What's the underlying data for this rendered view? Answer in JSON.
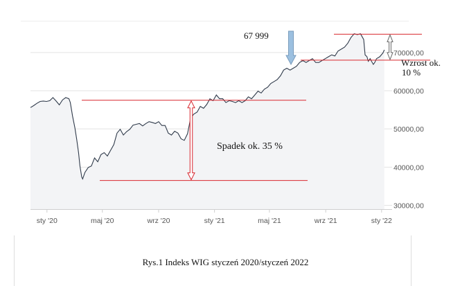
{
  "chart_data": {
    "type": "line",
    "title": "",
    "xlabel": "",
    "ylabel": "",
    "x_ticks": [
      "sty '20",
      "maj '20",
      "wrz '20",
      "sty '21",
      "maj '21",
      "wrz '21",
      "sty '22"
    ],
    "y_ticks": [
      "30000,00",
      "40000,00",
      "50000,00",
      "60000,00",
      "70000,00"
    ],
    "ylim": [
      29000,
      76500
    ],
    "x_range": [
      "2019-11-26",
      "2022-01-24"
    ],
    "grid": true,
    "series": [
      {
        "points": [
          [
            "2019-11-26",
            55600
          ],
          [
            "2019-12-03",
            56100
          ],
          [
            "2019-12-10",
            56700
          ],
          [
            "2019-12-17",
            57200
          ],
          [
            "2019-12-24",
            57300
          ],
          [
            "2019-12-31",
            57200
          ],
          [
            "2020-01-07",
            57400
          ],
          [
            "2020-01-14",
            58200
          ],
          [
            "2020-01-21",
            57300
          ],
          [
            "2020-01-28",
            56300
          ],
          [
            "2020-02-04",
            57600
          ],
          [
            "2020-02-11",
            58200
          ],
          [
            "2020-02-18",
            57900
          ],
          [
            "2020-02-21",
            56900
          ],
          [
            "2020-02-26",
            53300
          ],
          [
            "2020-03-02",
            50300
          ],
          [
            "2020-03-06",
            47300
          ],
          [
            "2020-03-10",
            43800
          ],
          [
            "2020-03-13",
            40300
          ],
          [
            "2020-03-17",
            37400
          ],
          [
            "2020-03-19",
            36900
          ],
          [
            "2020-03-24",
            38600
          ],
          [
            "2020-03-31",
            39900
          ],
          [
            "2020-04-07",
            40300
          ],
          [
            "2020-04-14",
            42400
          ],
          [
            "2020-04-21",
            41400
          ],
          [
            "2020-04-28",
            43300
          ],
          [
            "2020-05-05",
            43800
          ],
          [
            "2020-05-12",
            42900
          ],
          [
            "2020-05-19",
            44400
          ],
          [
            "2020-05-26",
            45900
          ],
          [
            "2020-06-02",
            48900
          ],
          [
            "2020-06-09",
            49900
          ],
          [
            "2020-06-16",
            48400
          ],
          [
            "2020-06-23",
            49300
          ],
          [
            "2020-06-30",
            49900
          ],
          [
            "2020-07-07",
            51000
          ],
          [
            "2020-07-14",
            51200
          ],
          [
            "2020-07-21",
            51400
          ],
          [
            "2020-07-28",
            50800
          ],
          [
            "2020-08-04",
            51400
          ],
          [
            "2020-08-11",
            51900
          ],
          [
            "2020-08-18",
            51700
          ],
          [
            "2020-08-25",
            51400
          ],
          [
            "2020-09-01",
            51900
          ],
          [
            "2020-09-08",
            50900
          ],
          [
            "2020-09-15",
            50900
          ],
          [
            "2020-09-22",
            48900
          ],
          [
            "2020-09-29",
            48400
          ],
          [
            "2020-10-06",
            49400
          ],
          [
            "2020-10-13",
            48900
          ],
          [
            "2020-10-20",
            47400
          ],
          [
            "2020-10-27",
            47000
          ],
          [
            "2020-11-03",
            48700
          ],
          [
            "2020-11-10",
            52900
          ],
          [
            "2020-11-17",
            53900
          ],
          [
            "2020-11-24",
            54400
          ],
          [
            "2020-12-01",
            55900
          ],
          [
            "2020-12-08",
            55400
          ],
          [
            "2020-12-15",
            56400
          ],
          [
            "2020-12-22",
            57900
          ],
          [
            "2020-12-29",
            57400
          ],
          [
            "2021-01-05",
            58900
          ],
          [
            "2021-01-12",
            57900
          ],
          [
            "2021-01-19",
            57900
          ],
          [
            "2021-01-26",
            56900
          ],
          [
            "2021-02-02",
            57400
          ],
          [
            "2021-02-09",
            57200
          ],
          [
            "2021-02-16",
            56900
          ],
          [
            "2021-02-23",
            57400
          ],
          [
            "2021-03-02",
            56900
          ],
          [
            "2021-03-09",
            57400
          ],
          [
            "2021-03-16",
            58400
          ],
          [
            "2021-03-23",
            57900
          ],
          [
            "2021-03-30",
            58900
          ],
          [
            "2021-04-06",
            59900
          ],
          [
            "2021-04-13",
            59400
          ],
          [
            "2021-04-20",
            60400
          ],
          [
            "2021-04-27",
            60900
          ],
          [
            "2021-05-04",
            61900
          ],
          [
            "2021-05-11",
            62400
          ],
          [
            "2021-05-18",
            62900
          ],
          [
            "2021-05-25",
            63900
          ],
          [
            "2021-06-01",
            65400
          ],
          [
            "2021-06-08",
            65900
          ],
          [
            "2021-06-15",
            65400
          ],
          [
            "2021-06-22",
            65900
          ],
          [
            "2021-06-29",
            66400
          ],
          [
            "2021-07-06",
            67400
          ],
          [
            "2021-07-13",
            67900
          ],
          [
            "2021-07-20",
            67400
          ],
          [
            "2021-07-27",
            67900
          ],
          [
            "2021-08-03",
            68400
          ],
          [
            "2021-08-10",
            67400
          ],
          [
            "2021-08-17",
            67400
          ],
          [
            "2021-08-24",
            67900
          ],
          [
            "2021-08-31",
            68400
          ],
          [
            "2021-09-07",
            68900
          ],
          [
            "2021-09-14",
            69400
          ],
          [
            "2021-09-21",
            69100
          ],
          [
            "2021-09-28",
            70400
          ],
          [
            "2021-10-05",
            70900
          ],
          [
            "2021-10-12",
            71400
          ],
          [
            "2021-10-19",
            72400
          ],
          [
            "2021-10-26",
            73900
          ],
          [
            "2021-11-02",
            74900
          ],
          [
            "2021-11-09",
            74700
          ],
          [
            "2021-11-16",
            74900
          ],
          [
            "2021-11-23",
            73400
          ],
          [
            "2021-11-26",
            69400
          ],
          [
            "2021-11-30",
            68900
          ],
          [
            "2021-12-03",
            67700
          ],
          [
            "2021-12-07",
            68400
          ],
          [
            "2021-12-10",
            67700
          ],
          [
            "2021-12-14",
            66900
          ],
          [
            "2021-12-17",
            67400
          ],
          [
            "2021-12-21",
            68400
          ],
          [
            "2021-12-28",
            68900
          ],
          [
            "2022-01-04",
            69900
          ],
          [
            "2022-01-07",
            70700
          ]
        ]
      }
    ],
    "annotations": {
      "peak_label": "67 999",
      "drop_label": "Spadek ok. 35 %",
      "rise_label_1": "Wzrost ok.",
      "rise_label_2": "10 %",
      "drop_top": 57500,
      "drop_bottom": 36500,
      "rise_top": 74800,
      "rise_bottom": 68000
    }
  },
  "caption": "Rys.1 Indeks WIG styczeń 2020/styczeń 2022",
  "colors": {
    "line": "#2f3a4a",
    "area": "#f3f4f6",
    "grid": "#e3e3e3",
    "annotation": "#d9272e",
    "arrow_fill": "#9cc0e0",
    "arrow_stroke": "#7a9cbc"
  }
}
